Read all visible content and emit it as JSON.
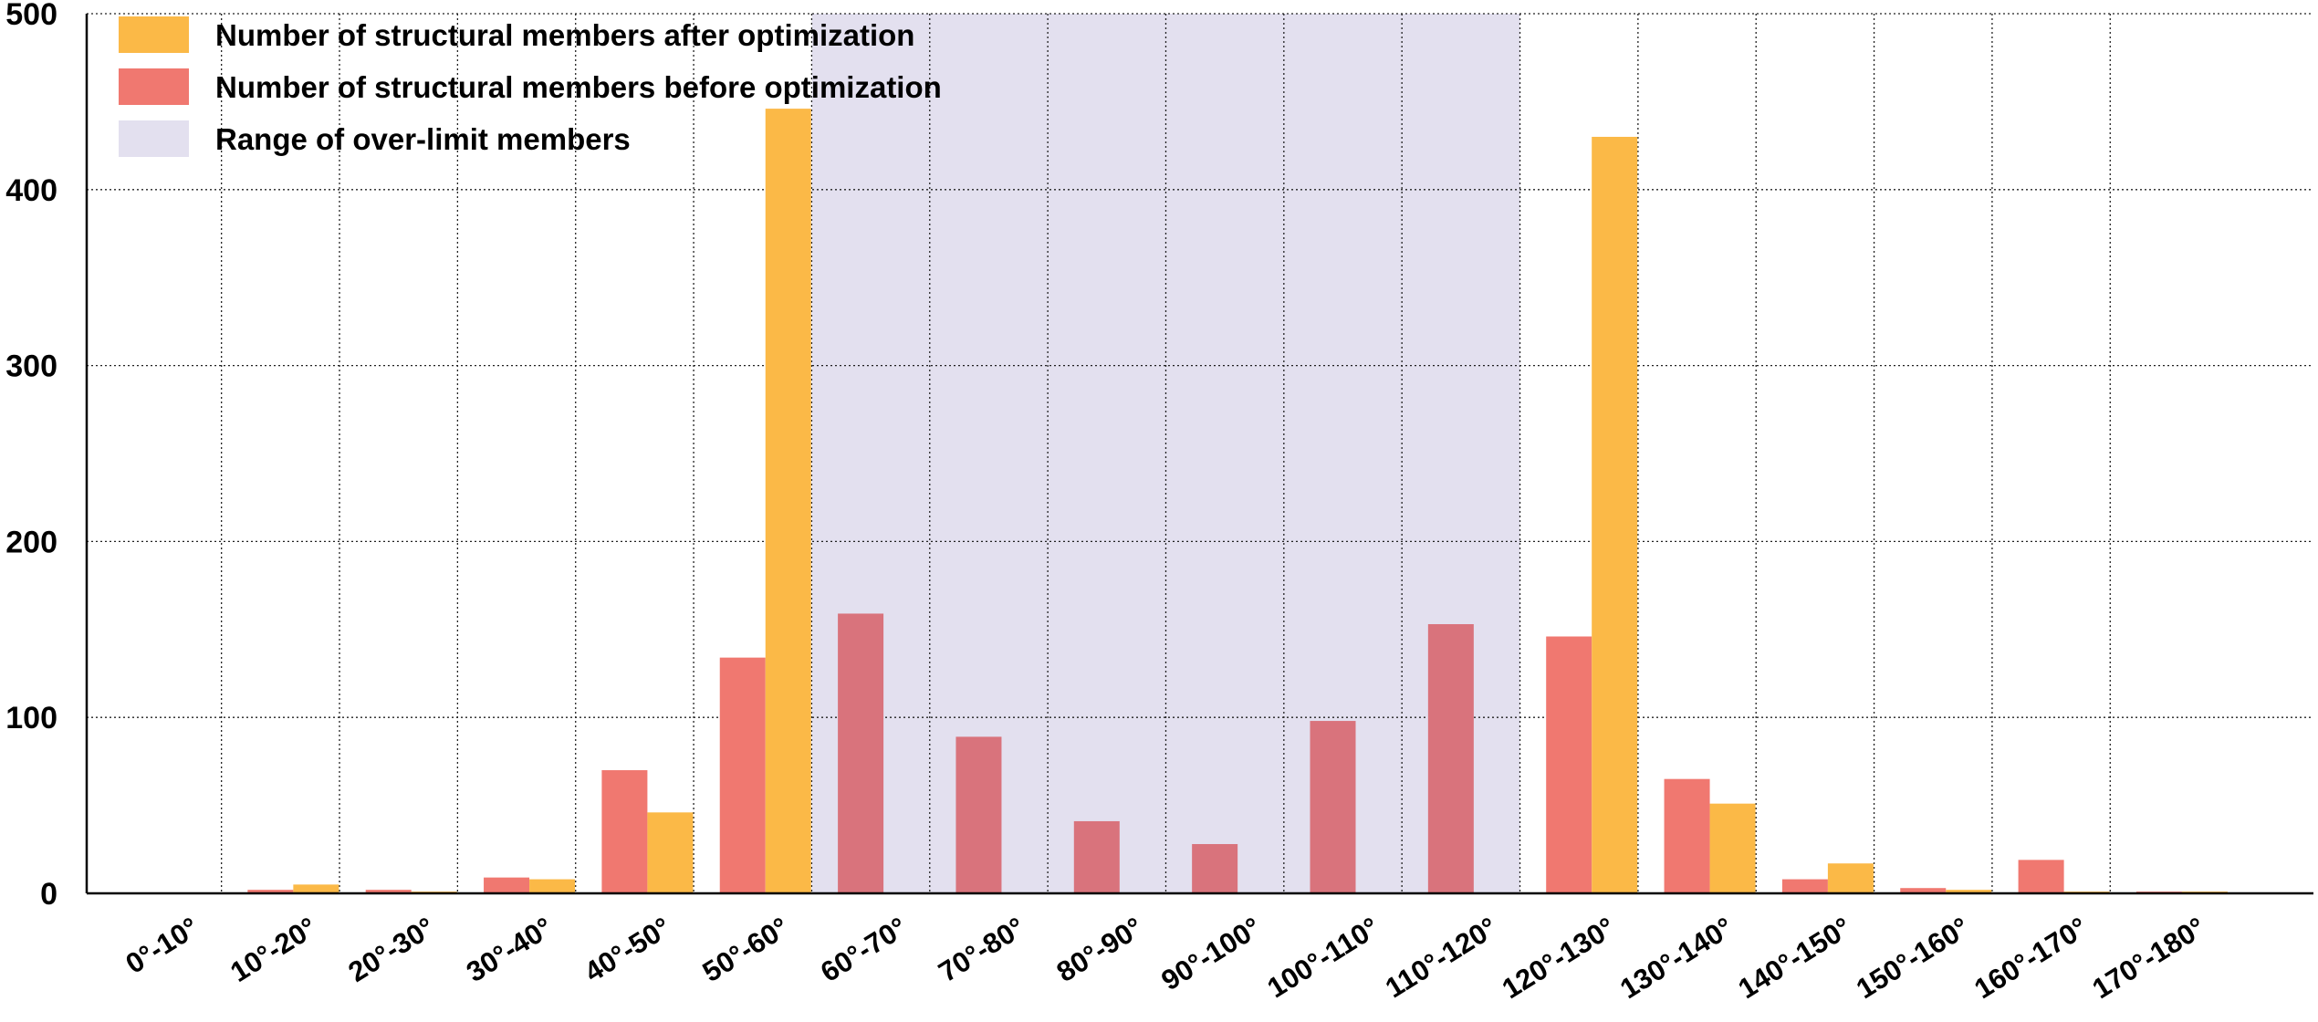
{
  "chart_data": {
    "type": "bar",
    "categories": [
      "0°-10°",
      "10°-20°",
      "20°-30°",
      "30°-40°",
      "40°-50°",
      "50°-60°",
      "60°-70°",
      "70°-80°",
      "80°-90°",
      "90°-100°",
      "100°-110°",
      "110°-120°",
      "120°-130°",
      "130°-140°",
      "140°-150°",
      "150°-160°",
      "160°-170°",
      "170°-180°"
    ],
    "series": [
      {
        "name": "Number of structural members before optimization",
        "color": "#f07870",
        "values": [
          0,
          2,
          2,
          9,
          70,
          134,
          159,
          89,
          41,
          28,
          98,
          153,
          146,
          65,
          8,
          3,
          19,
          1
        ]
      },
      {
        "name": "Number of structural members after optimization",
        "color": "#fbb947",
        "values": [
          0,
          5,
          1,
          8,
          46,
          446,
          0,
          0,
          0,
          0,
          0,
          0,
          430,
          51,
          17,
          2,
          1,
          1
        ]
      }
    ],
    "shaded_range": {
      "name": "Range of over-limit members",
      "color": "#e3e0ef",
      "from_category": "60°-70°",
      "to_category": "110°-120°"
    },
    "legend": [
      {
        "label": "Number of structural members after optimization",
        "color": "#fbb947"
      },
      {
        "label": "Number of structural members before optimization",
        "color": "#f07870"
      },
      {
        "label": "Range of over-limit members",
        "color": "#e3e0ef"
      }
    ],
    "yticks": [
      0,
      100,
      200,
      300,
      400,
      500
    ],
    "ylim": [
      0,
      500
    ],
    "legend_position": "top-left",
    "grid": true
  }
}
